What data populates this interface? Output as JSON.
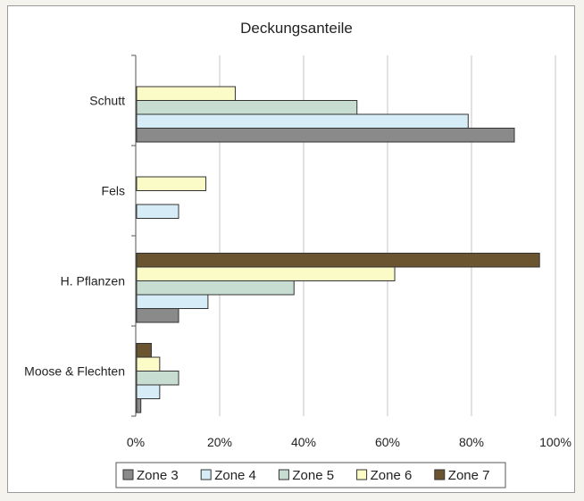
{
  "chart_data": {
    "type": "bar",
    "orientation": "horizontal",
    "title": "Deckungsanteile",
    "categories": [
      "Schutt",
      "Fels",
      "H. Pflanzen",
      "Moose & Flechten"
    ],
    "xlim": [
      0,
      100
    ],
    "x_ticks": [
      "0%",
      "20%",
      "40%",
      "60%",
      "80%",
      "100%"
    ],
    "grid": true,
    "legend_position": "bottom",
    "series": [
      {
        "name": "Zone 3",
        "color": "#8a8a8a",
        "values": [
          90,
          0,
          10,
          1
        ]
      },
      {
        "name": "Zone 4",
        "color": "#d6ecf6",
        "values": [
          79,
          10,
          17,
          5.5
        ]
      },
      {
        "name": "Zone 5",
        "color": "#c8ddd2",
        "values": [
          52.5,
          0,
          37.5,
          10
        ]
      },
      {
        "name": "Zone 6",
        "color": "#fbfbc8",
        "values": [
          23.5,
          16.5,
          61.5,
          5.5
        ]
      },
      {
        "name": "Zone 7",
        "color": "#6b5531",
        "values": [
          0,
          0,
          96,
          3.5
        ]
      }
    ]
  }
}
